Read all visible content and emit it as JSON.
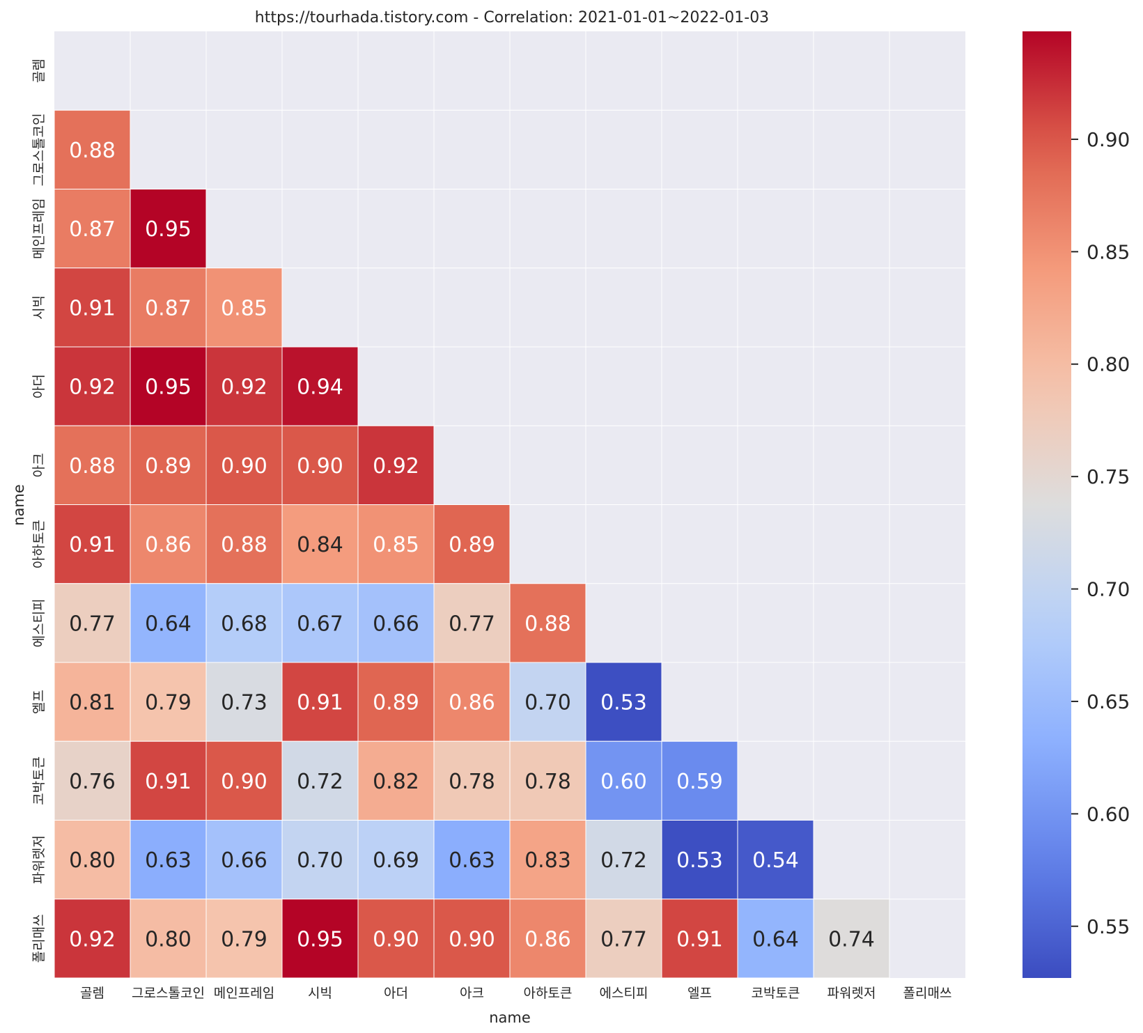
{
  "chart_data": {
    "type": "heatmap",
    "title": "https://tourhada.tistory.com - Correlation: 2021-01-01~2022-01-03",
    "xlabel": "name",
    "ylabel": "name",
    "categories": [
      "골렘",
      "그로스톨코인",
      "메인프레임",
      "시빅",
      "아더",
      "아크",
      "아하토큰",
      "에스티피",
      "엘프",
      "코박토큰",
      "파워렛저",
      "폴리매쓰"
    ],
    "values": [
      [
        null,
        null,
        null,
        null,
        null,
        null,
        null,
        null,
        null,
        null,
        null,
        null
      ],
      [
        0.88,
        null,
        null,
        null,
        null,
        null,
        null,
        null,
        null,
        null,
        null,
        null
      ],
      [
        0.87,
        0.95,
        null,
        null,
        null,
        null,
        null,
        null,
        null,
        null,
        null,
        null
      ],
      [
        0.91,
        0.87,
        0.85,
        null,
        null,
        null,
        null,
        null,
        null,
        null,
        null,
        null
      ],
      [
        0.92,
        0.95,
        0.92,
        0.94,
        null,
        null,
        null,
        null,
        null,
        null,
        null,
        null
      ],
      [
        0.88,
        0.89,
        0.9,
        0.9,
        0.92,
        null,
        null,
        null,
        null,
        null,
        null,
        null
      ],
      [
        0.91,
        0.86,
        0.88,
        0.84,
        0.85,
        0.89,
        null,
        null,
        null,
        null,
        null,
        null
      ],
      [
        0.77,
        0.64,
        0.68,
        0.67,
        0.66,
        0.77,
        0.88,
        null,
        null,
        null,
        null,
        null
      ],
      [
        0.81,
        0.79,
        0.73,
        0.91,
        0.89,
        0.86,
        0.7,
        0.53,
        null,
        null,
        null,
        null
      ],
      [
        0.76,
        0.91,
        0.9,
        0.72,
        0.82,
        0.78,
        0.78,
        0.6,
        0.59,
        null,
        null,
        null
      ],
      [
        0.8,
        0.63,
        0.66,
        0.7,
        0.69,
        0.63,
        0.83,
        0.72,
        0.53,
        0.54,
        null,
        null
      ],
      [
        0.92,
        0.8,
        0.79,
        0.95,
        0.9,
        0.9,
        0.86,
        0.77,
        0.91,
        0.64,
        0.74,
        null
      ]
    ],
    "colorbar": {
      "range": [
        0.527,
        0.948
      ],
      "ticks": [
        "0.55",
        "0.60",
        "0.65",
        "0.70",
        "0.75",
        "0.80",
        "0.85",
        "0.90"
      ],
      "colormap": "coolwarm"
    },
    "mask": "upper-triangle-and-diagonal",
    "grid": true,
    "background_color": "#eaeaf2"
  }
}
